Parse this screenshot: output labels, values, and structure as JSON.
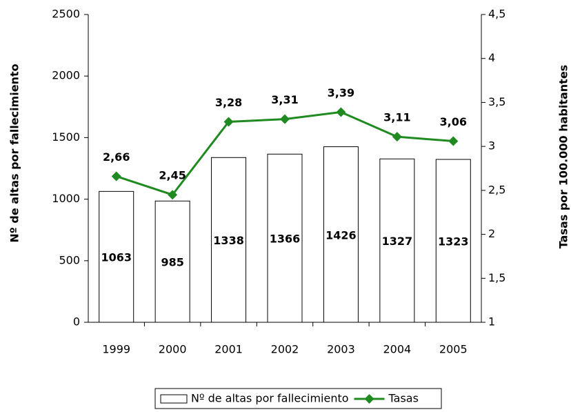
{
  "chart_data": {
    "type": "combo",
    "categories": [
      "1999",
      "2000",
      "2001",
      "2002",
      "2003",
      "2004",
      "2005"
    ],
    "series": [
      {
        "name": "Nº de altas por fallecimiento",
        "type": "bar",
        "color": "#ffffff",
        "values": [
          1063,
          985,
          1338,
          1366,
          1426,
          1327,
          1323
        ]
      },
      {
        "name": "Tasas",
        "type": "line",
        "axis": "y2",
        "color": "#1f8a1f",
        "values": [
          2.66,
          2.45,
          3.28,
          3.31,
          3.39,
          3.11,
          3.06
        ],
        "value_labels": [
          "2,66",
          "2,45",
          "3,28",
          "3,31",
          "3,39",
          "3,11",
          "3,06"
        ]
      }
    ],
    "ylabel": "Nº de altas por  fallecimiento",
    "y2label": "Tasas por 100.000 habitantes",
    "ylim": [
      0,
      2500
    ],
    "yticks": [
      0,
      500,
      1000,
      1500,
      2000,
      2500
    ],
    "y2lim": [
      1,
      4.5
    ],
    "y2ticks": [
      1,
      {
        "value": 1.5,
        "label": "1,5"
      },
      2,
      {
        "value": 2.5,
        "label": "2,5"
      },
      3,
      {
        "value": 3.5,
        "label": "3,5"
      },
      4,
      {
        "value": 4.5,
        "label": "4,5"
      }
    ],
    "legend": "bottom"
  }
}
